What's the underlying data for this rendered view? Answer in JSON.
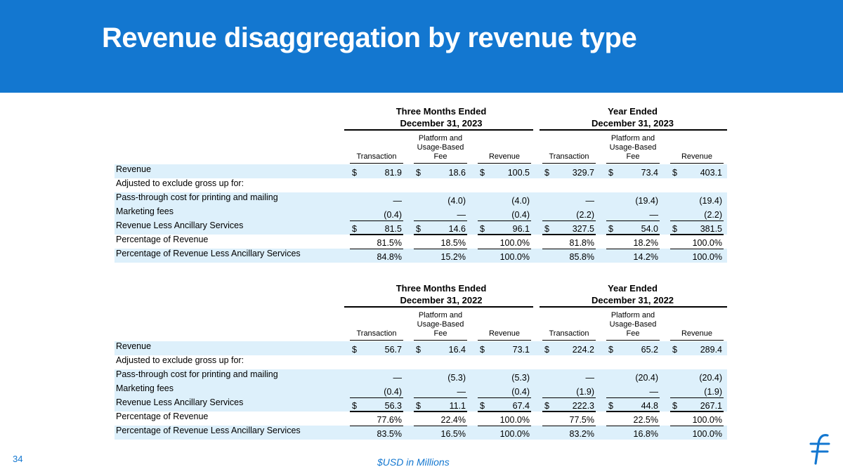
{
  "title": "Revenue disaggregation by revenue type",
  "page_number": "34",
  "footnote": "$USD in Millions",
  "logo_icon": "flywire-f-logo",
  "colors": {
    "accent": "#1377d0",
    "row_shade": "#ddf0fb"
  },
  "tables": [
    {
      "groups": [
        {
          "line1": "Three Months Ended",
          "line2": "December 31, 2023"
        },
        {
          "line1": "Year Ended",
          "line2": "December 31, 2023"
        }
      ],
      "columns": [
        [
          "Transaction"
        ],
        [
          "Platform and",
          "Usage-Based",
          "Fee"
        ],
        [
          "Revenue"
        ],
        [
          "Transaction"
        ],
        [
          "Platform and",
          "Usage-Based",
          "Fee"
        ],
        [
          "Revenue"
        ]
      ],
      "rows": [
        {
          "label": "Revenue",
          "values": [
            "81.9",
            "18.6",
            "100.5",
            "329.7",
            "73.4",
            "403.1"
          ]
        },
        {
          "label": "Adjusted to exclude gross up for:",
          "values": [
            "",
            "",
            "",
            "",
            "",
            ""
          ]
        },
        {
          "label": "Pass-through cost for printing and mailing",
          "values": [
            "—",
            "(4.0)",
            "(4.0)",
            "—",
            "(19.4)",
            "(19.4)"
          ]
        },
        {
          "label": "Marketing fees",
          "values": [
            "(0.4)",
            "—",
            "(0.4)",
            "(2.2)",
            "—",
            "(2.2)"
          ]
        },
        {
          "label": "Revenue Less Ancillary Services",
          "values": [
            "81.5",
            "14.6",
            "96.1",
            "327.5",
            "54.0",
            "381.5"
          ]
        },
        {
          "label": "Percentage of Revenue",
          "values": [
            "81.5%",
            "18.5%",
            "100.0%",
            "81.8%",
            "18.2%",
            "100.0%"
          ]
        },
        {
          "label": "Percentage of Revenue Less Ancillary Services",
          "values": [
            "84.8%",
            "15.2%",
            "100.0%",
            "85.8%",
            "14.2%",
            "100.0%"
          ]
        }
      ]
    },
    {
      "groups": [
        {
          "line1": "Three Months Ended",
          "line2": "December 31, 2022"
        },
        {
          "line1": "Year Ended",
          "line2": "December 31, 2022"
        }
      ],
      "columns": [
        [
          "Transaction"
        ],
        [
          "Platform and",
          "Usage-Based",
          "Fee"
        ],
        [
          "Revenue"
        ],
        [
          "Transaction"
        ],
        [
          "Platform and",
          "Usage-Based",
          "Fee"
        ],
        [
          "Revenue"
        ]
      ],
      "rows": [
        {
          "label": "Revenue",
          "values": [
            "56.7",
            "16.4",
            "73.1",
            "224.2",
            "65.2",
            "289.4"
          ]
        },
        {
          "label": "Adjusted to exclude gross up for:",
          "values": [
            "",
            "",
            "",
            "",
            "",
            ""
          ]
        },
        {
          "label": "Pass-through cost for printing and mailing",
          "values": [
            "—",
            "(5.3)",
            "(5.3)",
            "—",
            "(20.4)",
            "(20.4)"
          ]
        },
        {
          "label": "Marketing fees",
          "values": [
            "(0.4)",
            "—",
            "(0.4)",
            "(1.9)",
            "—",
            "(1.9)"
          ]
        },
        {
          "label": "Revenue Less Ancillary Services",
          "values": [
            "56.3",
            "11.1",
            "67.4",
            "222.3",
            "44.8",
            "267.1"
          ]
        },
        {
          "label": "Percentage of Revenue",
          "values": [
            "77.6%",
            "22.4%",
            "100.0%",
            "77.5%",
            "22.5%",
            "100.0%"
          ]
        },
        {
          "label": "Percentage of Revenue Less Ancillary Services",
          "values": [
            "83.5%",
            "16.5%",
            "100.0%",
            "83.2%",
            "16.8%",
            "100.0%"
          ]
        }
      ]
    }
  ],
  "dollar_sign": "$",
  "dollar_rows": [
    0,
    4
  ]
}
